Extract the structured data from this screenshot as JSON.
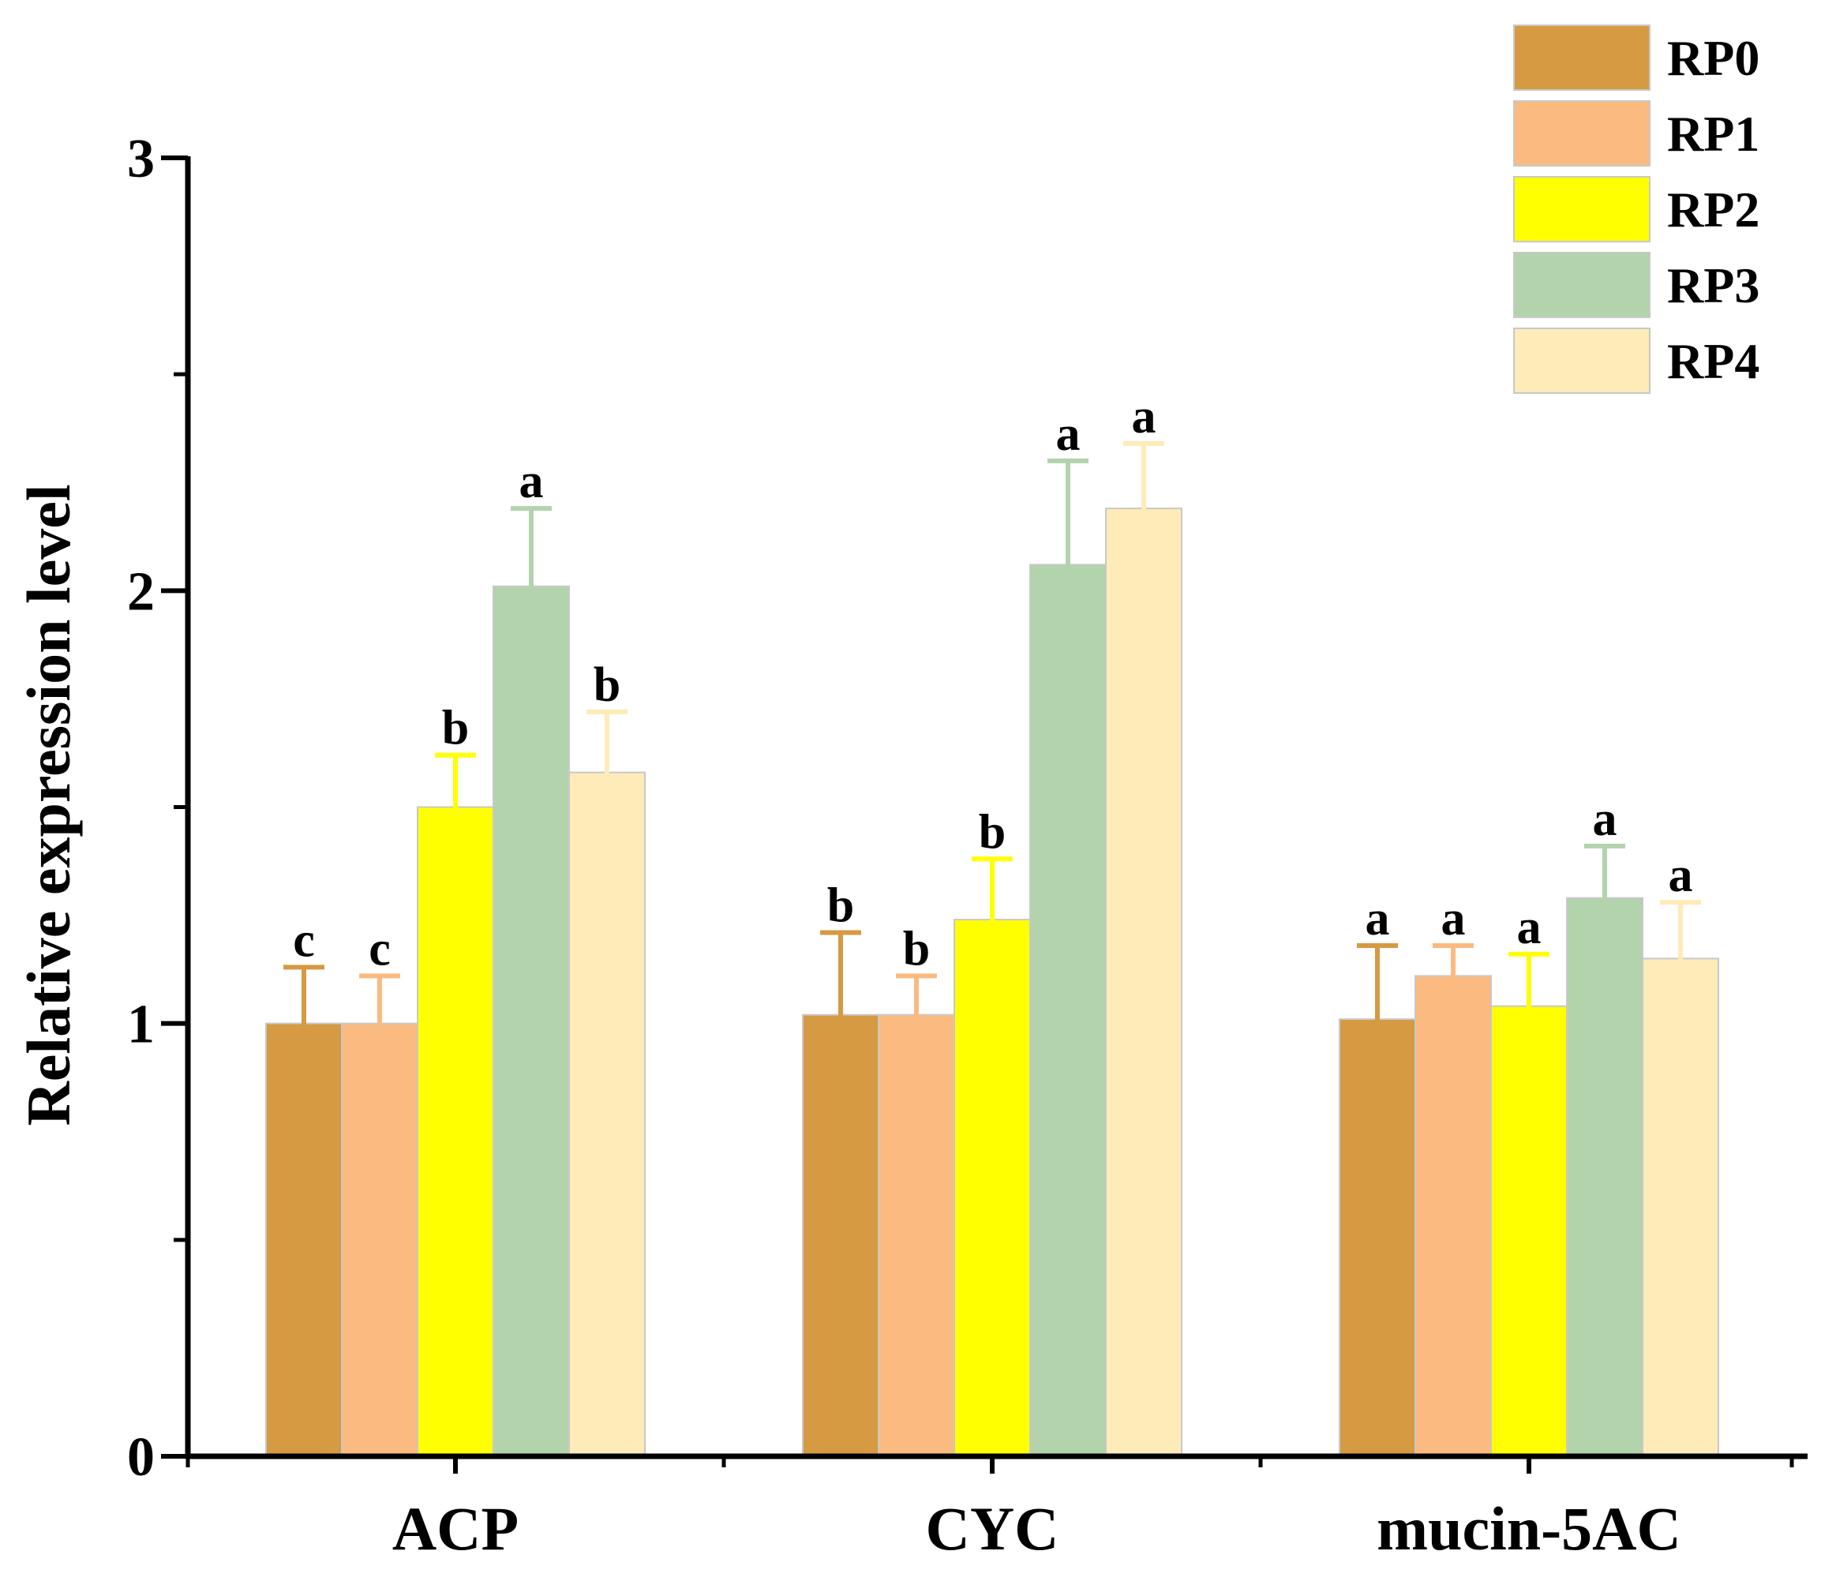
{
  "chart_data": {
    "type": "bar",
    "title": "",
    "xlabel": "",
    "ylabel": "Relative expression level",
    "ylim": [
      0,
      3
    ],
    "y_major_ticks": [
      0,
      1,
      2,
      3
    ],
    "y_minor_ticks": [
      0.5,
      1.5,
      2.5
    ],
    "grid": false,
    "legend_position": "top-right",
    "categories": [
      "ACP",
      "CYC",
      "mucin-5AC"
    ],
    "series": [
      {
        "name": "RP0",
        "color": "#D59A42",
        "values": [
          1.0,
          1.02,
          1.01
        ],
        "errors": [
          0.13,
          0.19,
          0.17
        ],
        "labels": [
          "c",
          "b",
          "a"
        ]
      },
      {
        "name": "RP1",
        "color": "#FBBA80",
        "values": [
          1.0,
          1.02,
          1.11
        ],
        "errors": [
          0.11,
          0.09,
          0.07
        ],
        "labels": [
          "c",
          "b",
          "a"
        ]
      },
      {
        "name": "RP2",
        "color": "#FFFF00",
        "values": [
          1.5,
          1.24,
          1.04
        ],
        "errors": [
          0.12,
          0.14,
          0.12
        ],
        "labels": [
          "b",
          "b",
          "a"
        ]
      },
      {
        "name": "RP3",
        "color": "#B3D3AC",
        "values": [
          2.01,
          2.06,
          1.29
        ],
        "errors": [
          0.18,
          0.24,
          0.12
        ],
        "labels": [
          "a",
          "a",
          "a"
        ]
      },
      {
        "name": "RP4",
        "color": "#FFEBB8",
        "values": [
          1.58,
          2.19,
          1.15
        ],
        "errors": [
          0.14,
          0.15,
          0.13
        ],
        "labels": [
          "b",
          "a",
          "a"
        ]
      }
    ]
  }
}
